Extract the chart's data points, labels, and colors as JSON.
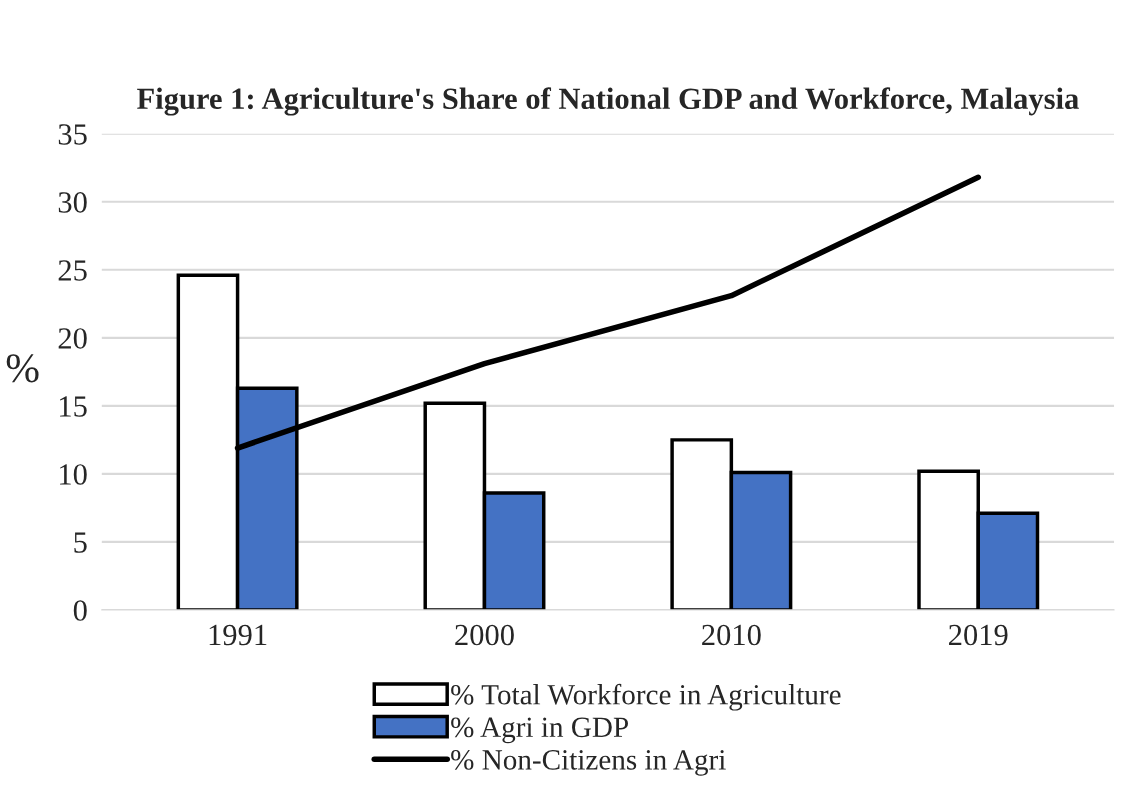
{
  "chart_data": {
    "type": "bar",
    "title": "Figure 1: Agriculture's Share of National GDP and Workforce, Malaysia",
    "ylabel": "%",
    "categories": [
      "1991",
      "2000",
      "2010",
      "2019"
    ],
    "series": [
      {
        "name": "% Total Workforce in Agriculture",
        "color": "#ffffff",
        "values": [
          24.6,
          15.2,
          12.5,
          10.2
        ]
      },
      {
        "name": "% Agri in GDP",
        "color": "#4472c4",
        "values": [
          16.3,
          8.6,
          10.1,
          7.1
        ]
      },
      {
        "name": "% Non-Citizens in Agri",
        "type": "line",
        "color": "#000000",
        "values": [
          11.9,
          18.1,
          23.1,
          31.8
        ]
      }
    ],
    "ylim": [
      0,
      35
    ],
    "yticks": [
      0,
      5,
      10,
      15,
      20,
      25,
      30,
      35
    ],
    "grid": "y",
    "legend": "bottom"
  }
}
